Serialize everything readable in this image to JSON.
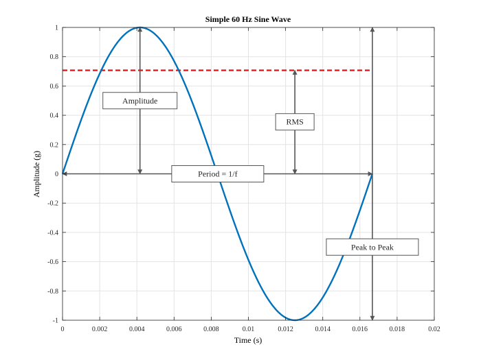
{
  "chart_data": {
    "type": "line",
    "title": "Simple 60 Hz Sine Wave",
    "xlabel": "Time (s)",
    "ylabel": "Amplitude (g)",
    "xlim": [
      0,
      0.02
    ],
    "ylim": [
      -1,
      1
    ],
    "grid": true,
    "x_ticks": [
      "0",
      "0.002",
      "0.004",
      "0.006",
      "0.008",
      "0.01",
      "0.012",
      "0.014",
      "0.016",
      "0.018",
      "0.02"
    ],
    "y_ticks": [
      "1",
      "0.8",
      "0.6",
      "0.4",
      "0.2",
      "0",
      "-0.2",
      "-0.4",
      "-0.6",
      "-0.8",
      "-1"
    ],
    "frequency_hz": 60,
    "amplitude": 1,
    "series": [
      {
        "x": [
          0,
          0.001,
          0.002,
          0.003,
          0.004,
          0.004167,
          0.005,
          0.006,
          0.007,
          0.008,
          0.009,
          0.01,
          0.011,
          0.012,
          0.0125,
          0.013,
          0.014,
          0.015,
          0.016,
          0.016667
        ],
        "y": [
          0,
          0.368,
          0.685,
          0.905,
          0.998,
          1.0,
          0.951,
          0.809,
          0.588,
          0.309,
          -0.309,
          -0.588,
          -0.809,
          -0.951,
          -1.0,
          -0.998,
          -0.905,
          -0.685,
          -0.368,
          0
        ],
        "color": "#0072BD"
      }
    ],
    "rms_line": {
      "y": 0.7071,
      "x": [
        0,
        0.01667
      ],
      "color": "#e31a1c",
      "style": "dashed"
    },
    "annotations": [
      {
        "label": "Amplitude",
        "type": "vertical-double-arrow",
        "x": 0.004167,
        "y": [
          0,
          1
        ]
      },
      {
        "label": "RMS",
        "type": "vertical-double-arrow",
        "x": 0.0125,
        "y": [
          0,
          0.7071
        ]
      },
      {
        "label": "Period = 1/f",
        "type": "horizontal-double-arrow",
        "y": 0,
        "x": [
          0,
          0.01667
        ]
      },
      {
        "label": "Peak to Peak",
        "type": "vertical-double-arrow",
        "x": 0.01667,
        "y": [
          -1,
          1
        ]
      }
    ]
  }
}
